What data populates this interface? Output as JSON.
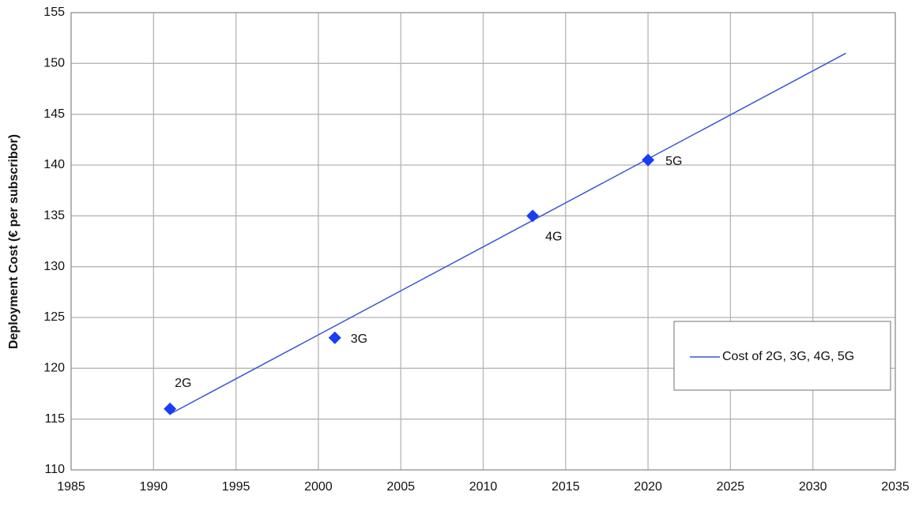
{
  "chart_data": {
    "type": "scatter",
    "y_label": "Deployment Cost (€ per subscribor)",
    "xlim": [
      1985,
      2035
    ],
    "xticks": [
      1985,
      1990,
      1995,
      2000,
      2005,
      2010,
      2015,
      2020,
      2025,
      2030,
      2035
    ],
    "ylim": [
      110,
      155
    ],
    "yticks": [
      110,
      115,
      120,
      125,
      130,
      135,
      140,
      145,
      150,
      155
    ],
    "grid": true,
    "legend": "lower right",
    "points": {
      "color": "#1a3cf2",
      "x": [
        1991,
        2001,
        2013,
        2020
      ],
      "values": [
        116,
        123,
        135,
        140.5
      ],
      "labels": [
        "2G",
        "3G",
        "4G",
        "5G"
      ]
    },
    "series": [
      {
        "name": "Cost of 2G, 3G, 4G, 5G",
        "color": "#3a56d6",
        "x": [
          1991,
          2032
        ],
        "values": [
          115.5,
          151
        ]
      }
    ]
  }
}
